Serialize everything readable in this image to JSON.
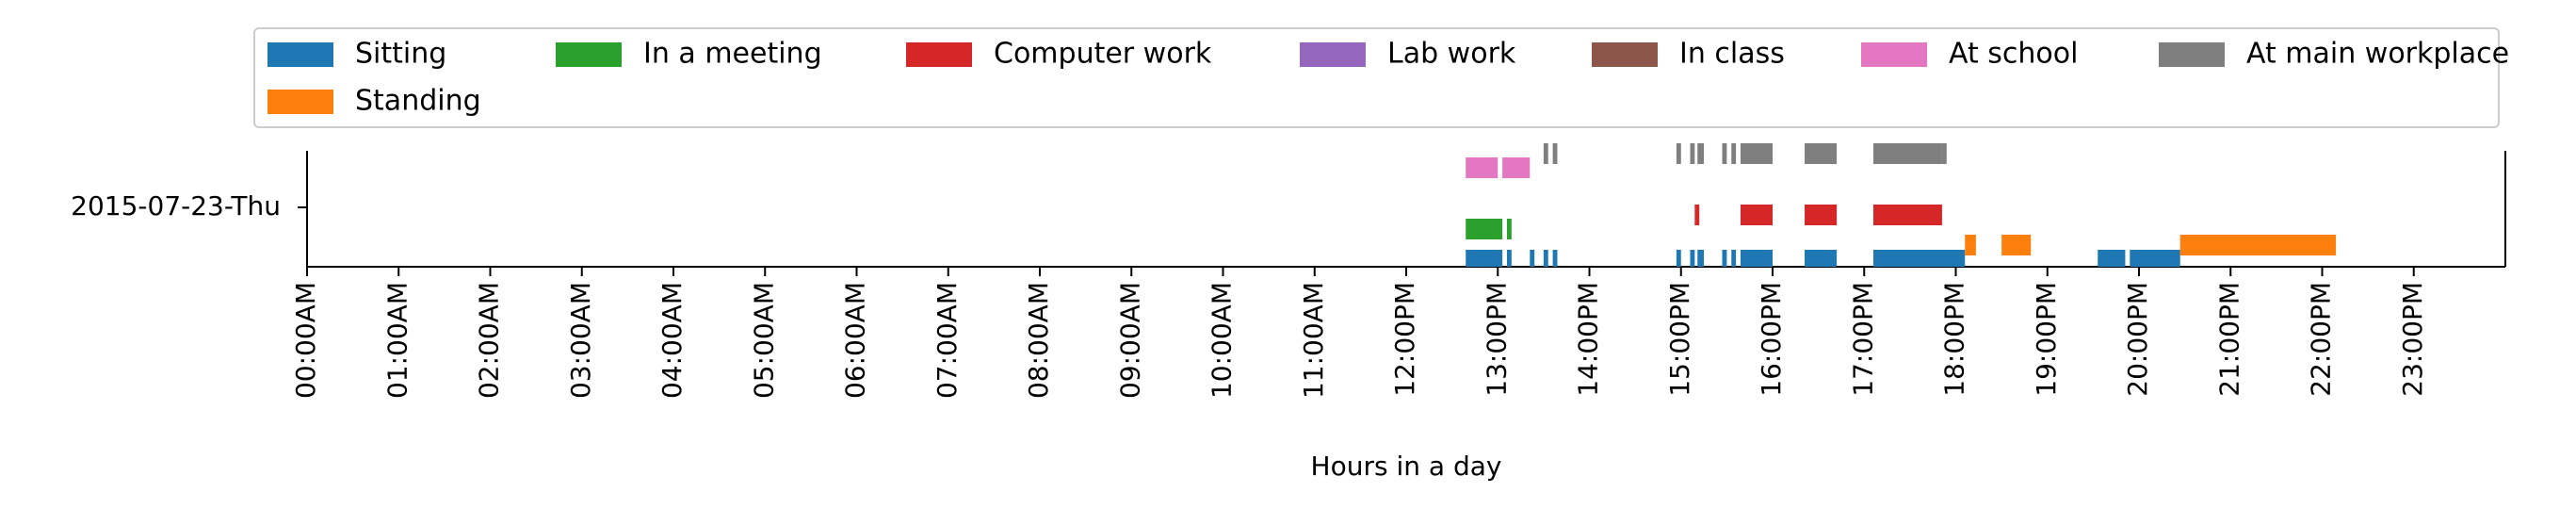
{
  "chart_data": {
    "type": "timeline",
    "xlabel": "Hours in a day",
    "ylabel": "",
    "day_label": "2015-07-23-Thu",
    "xlim_hours": [
      0,
      24
    ],
    "x_ticks": [
      "00:00AM",
      "01:00AM",
      "02:00AM",
      "03:00AM",
      "04:00AM",
      "05:00AM",
      "06:00AM",
      "07:00AM",
      "08:00AM",
      "09:00AM",
      "10:00AM",
      "11:00AM",
      "12:00PM",
      "13:00PM",
      "14:00PM",
      "15:00PM",
      "16:00PM",
      "17:00PM",
      "18:00PM",
      "19:00PM",
      "20:00PM",
      "21:00PM",
      "22:00PM",
      "23:00PM"
    ],
    "legend_position": "top",
    "series": [
      {
        "name": "Sitting",
        "color": "#1f77b4",
        "intervals": [
          [
            12.65,
            13.05
          ],
          [
            13.1,
            13.15
          ],
          [
            13.35,
            13.4
          ],
          [
            13.5,
            13.55
          ],
          [
            13.6,
            13.65
          ],
          [
            14.95,
            15.0
          ],
          [
            15.1,
            15.15
          ],
          [
            15.18,
            15.25
          ],
          [
            15.45,
            15.5
          ],
          [
            15.55,
            15.6
          ],
          [
            15.65,
            16.0
          ],
          [
            16.35,
            16.7
          ],
          [
            17.1,
            18.1
          ],
          [
            19.55,
            19.85
          ],
          [
            19.9,
            20.45
          ]
        ]
      },
      {
        "name": "In a meeting",
        "color": "#2ca02c",
        "intervals": [
          [
            12.65,
            13.05
          ],
          [
            13.1,
            13.15
          ]
        ]
      },
      {
        "name": "Computer work",
        "color": "#d62728",
        "intervals": [
          [
            15.15,
            15.2
          ],
          [
            15.65,
            16.0
          ],
          [
            16.35,
            16.7
          ],
          [
            17.1,
            17.85
          ]
        ]
      },
      {
        "name": "Lab work",
        "color": "#9467bd",
        "intervals": []
      },
      {
        "name": "In class",
        "color": "#8c564b",
        "intervals": []
      },
      {
        "name": "At school",
        "color": "#e377c2",
        "intervals": [
          [
            12.65,
            13.0
          ],
          [
            13.05,
            13.35
          ]
        ]
      },
      {
        "name": "At main workplace",
        "color": "#7f7f7f",
        "intervals": [
          [
            13.5,
            13.55
          ],
          [
            13.6,
            13.65
          ],
          [
            14.95,
            15.0
          ],
          [
            15.1,
            15.15
          ],
          [
            15.18,
            15.25
          ],
          [
            15.45,
            15.5
          ],
          [
            15.55,
            15.6
          ],
          [
            15.65,
            16.0
          ],
          [
            16.35,
            16.7
          ],
          [
            17.1,
            17.85
          ],
          [
            17.85,
            17.9
          ]
        ]
      },
      {
        "name": "Standing",
        "color": "#ff7f0e",
        "intervals": [
          [
            18.1,
            18.22
          ],
          [
            18.5,
            18.82
          ],
          [
            20.45,
            22.15
          ]
        ]
      }
    ]
  }
}
